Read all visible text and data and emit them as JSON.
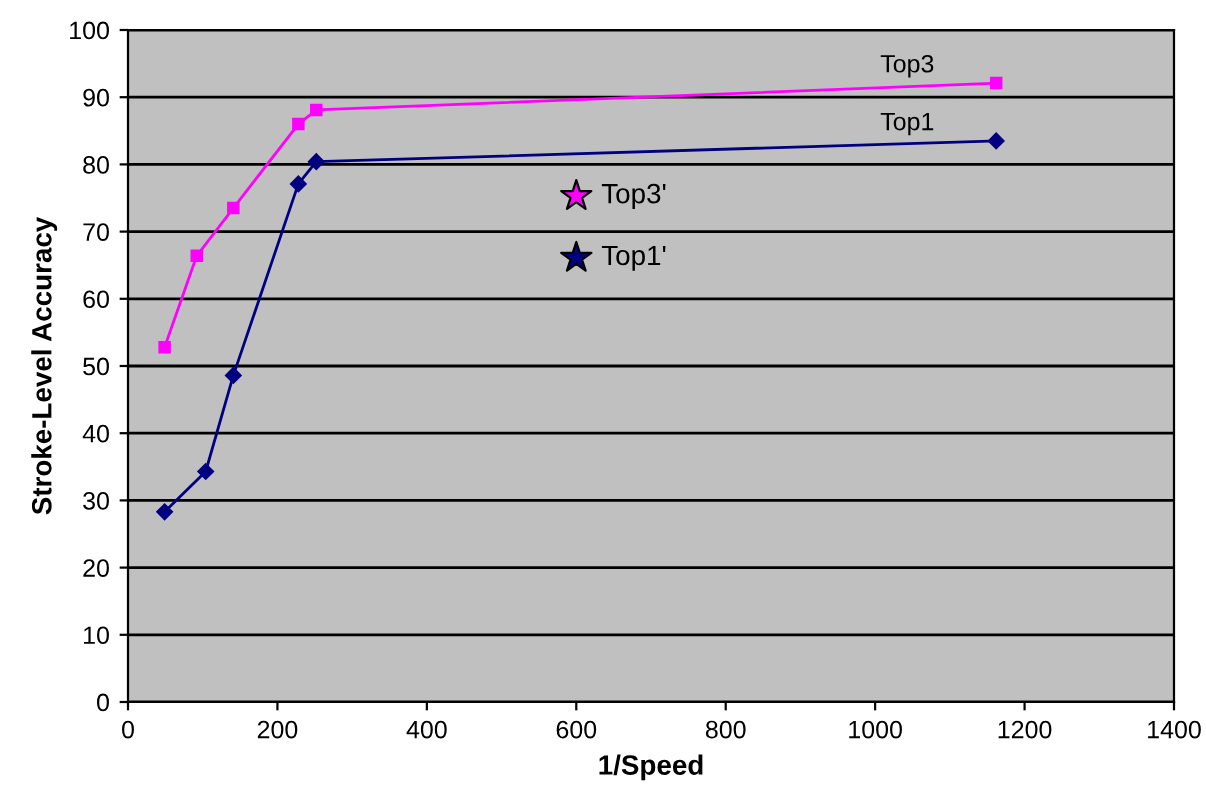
{
  "chart_data": {
    "type": "line",
    "xlabel": "1/Speed",
    "ylabel": "Stroke-Level Accuracy",
    "xlim": [
      0,
      1400
    ],
    "xticks": [
      0,
      200,
      400,
      600,
      800,
      1000,
      1200,
      1400
    ],
    "ylim": [
      0,
      100
    ],
    "yticks": [
      0,
      10,
      20,
      30,
      40,
      50,
      60,
      70,
      80,
      90,
      100
    ],
    "grid": "y",
    "legend": false,
    "series": [
      {
        "name": "Top3",
        "color": "#ff00ff",
        "marker": "square",
        "x": [
          49,
          92,
          141,
          228,
          252,
          1162
        ],
        "values": [
          52.8,
          66.4,
          73.5,
          86.0,
          88.1,
          92.1
        ]
      },
      {
        "name": "Top1",
        "color": "#000080",
        "marker": "diamond",
        "x": [
          49,
          104,
          141,
          228,
          252,
          1162
        ],
        "values": [
          28.3,
          34.3,
          48.6,
          77.1,
          80.4,
          83.5
        ]
      },
      {
        "name": "Top3'",
        "type": "scatter",
        "color": "#ff00ff",
        "marker": "star",
        "x": [
          600
        ],
        "values": [
          75.3
        ]
      },
      {
        "name": "Top1'",
        "type": "scatter",
        "color": "#000080",
        "marker": "star",
        "x": [
          600
        ],
        "values": [
          66.1
        ]
      }
    ]
  }
}
